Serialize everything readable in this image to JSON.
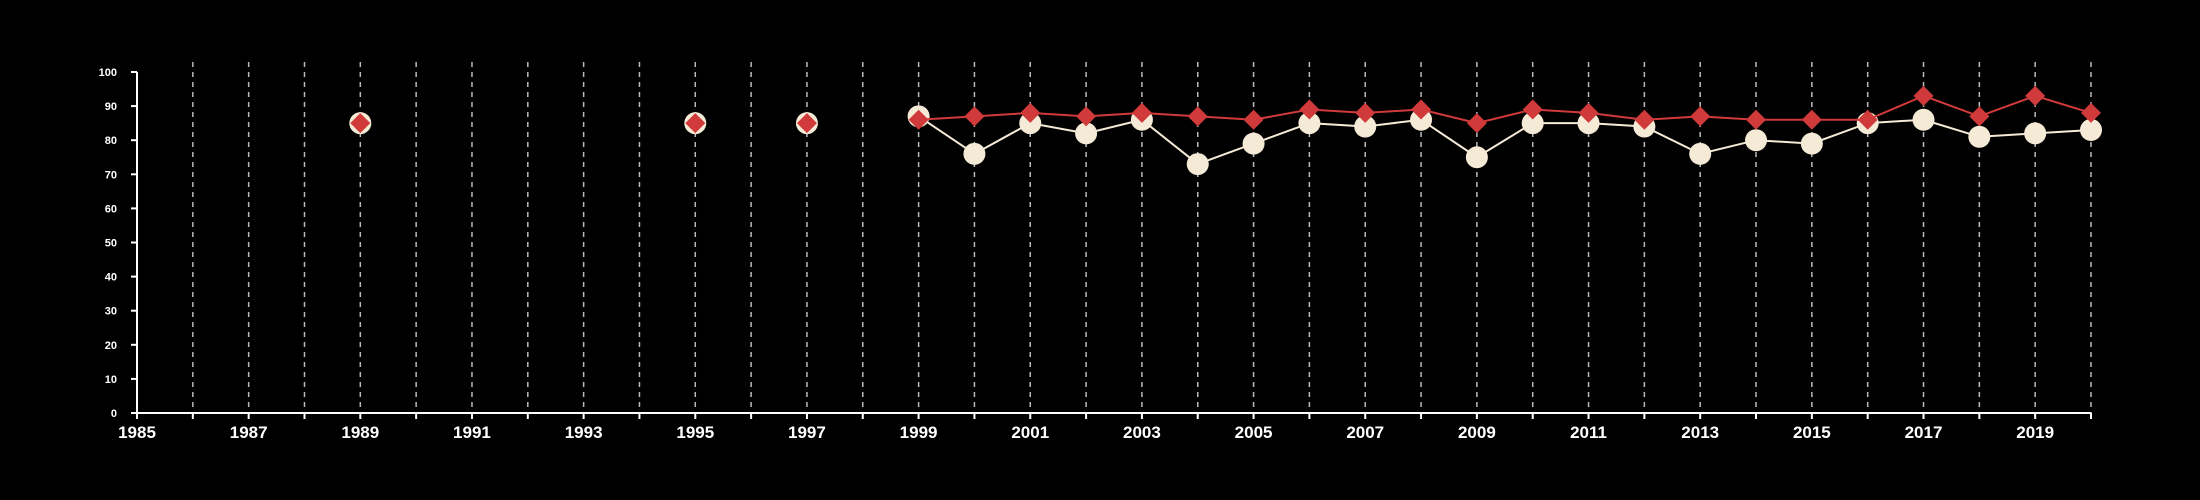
{
  "chart_data": {
    "type": "line",
    "title": "",
    "xlabel": "",
    "ylabel": "",
    "xlim": [
      1985,
      2020
    ],
    "ylim": [
      0,
      100
    ],
    "x_ticks": [
      1985,
      1987,
      1989,
      1991,
      1993,
      1995,
      1997,
      1999,
      2001,
      2003,
      2005,
      2007,
      2009,
      2011,
      2013,
      2015,
      2017,
      2019
    ],
    "y_ticks": [
      0,
      10,
      20,
      30,
      40,
      50,
      60,
      70,
      80,
      90,
      100
    ],
    "grid": "vertical dashed, every year from 1986",
    "legend": "none",
    "colors": {
      "background": "#000000",
      "axis": "#ffffff",
      "grid": "#bbbbbb",
      "series_a": "#f5ead6",
      "series_b": "#d03a3a"
    },
    "series": [
      {
        "marker": "circle",
        "color": "#f5ead6",
        "points": [
          [
            1989,
            85
          ],
          [
            1995,
            85
          ],
          [
            1997,
            85
          ],
          [
            1999,
            87
          ],
          [
            2000,
            76
          ],
          [
            2001,
            85
          ],
          [
            2002,
            82
          ],
          [
            2003,
            86
          ],
          [
            2004,
            73
          ],
          [
            2005,
            79
          ],
          [
            2006,
            85
          ],
          [
            2007,
            84
          ],
          [
            2008,
            86
          ],
          [
            2009,
            75
          ],
          [
            2010,
            85
          ],
          [
            2011,
            85
          ],
          [
            2012,
            84
          ],
          [
            2013,
            76
          ],
          [
            2014,
            80
          ],
          [
            2015,
            79
          ],
          [
            2016,
            85
          ],
          [
            2017,
            86
          ],
          [
            2018,
            81
          ],
          [
            2019,
            82
          ],
          [
            2020,
            83
          ]
        ]
      },
      {
        "marker": "diamond",
        "color": "#d03a3a",
        "points": [
          [
            1989,
            85
          ],
          [
            1995,
            85
          ],
          [
            1997,
            85
          ],
          [
            1999,
            86
          ],
          [
            2000,
            87
          ],
          [
            2001,
            88
          ],
          [
            2002,
            87
          ],
          [
            2003,
            88
          ],
          [
            2004,
            87
          ],
          [
            2005,
            86
          ],
          [
            2006,
            89
          ],
          [
            2007,
            88
          ],
          [
            2008,
            89
          ],
          [
            2009,
            85
          ],
          [
            2010,
            89
          ],
          [
            2011,
            88
          ],
          [
            2012,
            86
          ],
          [
            2013,
            87
          ],
          [
            2014,
            86
          ],
          [
            2015,
            86
          ],
          [
            2016,
            86
          ],
          [
            2017,
            93
          ],
          [
            2018,
            87
          ],
          [
            2019,
            93
          ],
          [
            2020,
            88
          ]
        ]
      }
    ]
  }
}
